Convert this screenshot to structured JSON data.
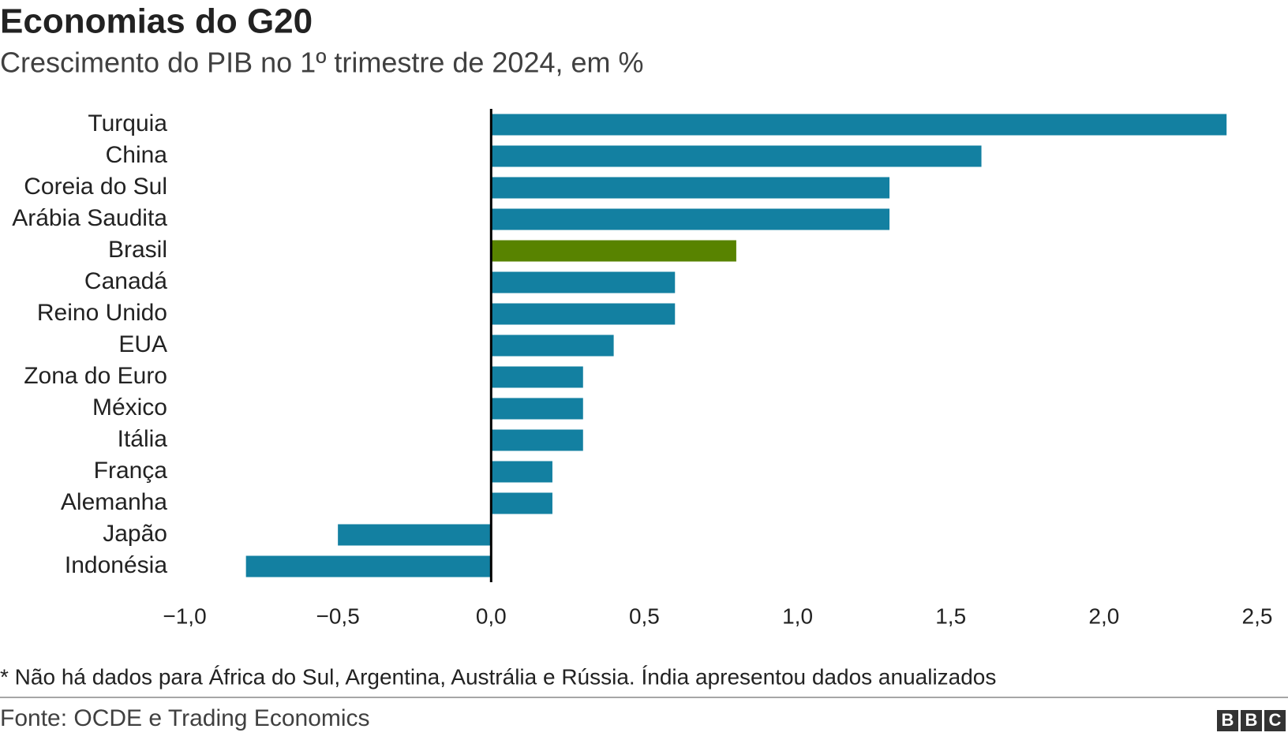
{
  "chart_data": {
    "type": "hbar",
    "title": "Economias do G20",
    "subtitle": "Crescimento do PIB no 1º trimestre de 2024, em %",
    "categories": [
      "Turquia",
      "China",
      "Coreia do Sul",
      "Arábia Saudita",
      "Brasil",
      "Canadá",
      "Reino Unido",
      "EUA",
      "Zona do Euro",
      "México",
      "Itália",
      "França",
      "Alemanha",
      "Japão",
      "Indonésia"
    ],
    "values": [
      2.4,
      1.6,
      1.3,
      1.3,
      0.8,
      0.6,
      0.6,
      0.4,
      0.3,
      0.3,
      0.3,
      0.2,
      0.2,
      -0.5,
      -0.8
    ],
    "colors": [
      "#1380a1",
      "#1380a1",
      "#1380a1",
      "#1380a1",
      "#588300",
      "#1380a1",
      "#1380a1",
      "#1380a1",
      "#1380a1",
      "#1380a1",
      "#1380a1",
      "#1380a1",
      "#1380a1",
      "#1380a1",
      "#1380a1"
    ],
    "xlim": [
      -1,
      2.5
    ],
    "xticks": [
      {
        "value": -1,
        "label": "−1,0"
      },
      {
        "value": -0.5,
        "label": "−0,5"
      },
      {
        "value": 0,
        "label": "0,0"
      },
      {
        "value": 0.5,
        "label": "0,5"
      },
      {
        "value": 1,
        "label": "1,0"
      },
      {
        "value": 1.5,
        "label": "1,5"
      },
      {
        "value": 2,
        "label": "2,0"
      },
      {
        "value": 2.5,
        "label": "2,5"
      }
    ],
    "note": "* Não há dados para África do Sul, Argentina, Austrália e Rússia. Índia apresentou dados anualizados",
    "source": "Fonte: OCDE e Trading Economics",
    "logo": [
      "B",
      "B",
      "C"
    ]
  }
}
